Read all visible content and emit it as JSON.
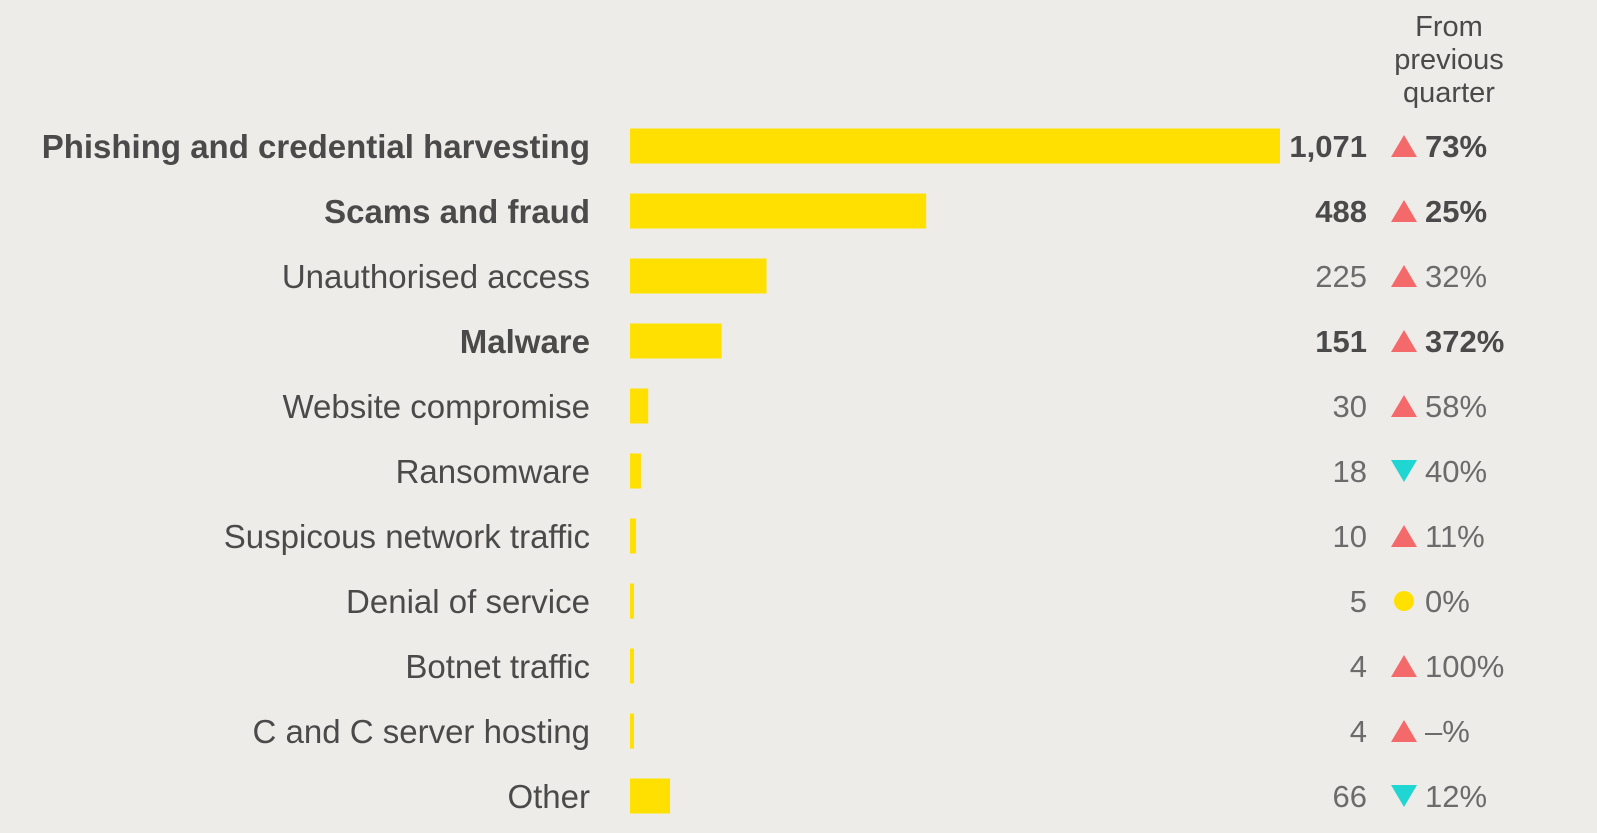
{
  "chart_data": {
    "type": "bar",
    "orientation": "horizontal",
    "title": "",
    "xlabel": "",
    "ylabel": "",
    "change_header": [
      "From",
      "previous",
      "quarter"
    ],
    "categories": [
      "Phishing and credential harvesting",
      "Scams and fraud",
      "Unauthorised access",
      "Malware",
      "Website compromise",
      "Ransomware",
      "Suspicous network traffic",
      "Denial of service",
      "Botnet traffic",
      "C and C server hosting",
      "Other"
    ],
    "values": [
      1071,
      488,
      225,
      151,
      30,
      18,
      10,
      5,
      4,
      4,
      66
    ],
    "value_labels": [
      "1,071",
      "488",
      "225",
      "151",
      "30",
      "18",
      "10",
      "5",
      "4",
      "4",
      "66"
    ],
    "changes": [
      "73%",
      "25%",
      "32%",
      "372%",
      "58%",
      "40%",
      "11%",
      "0%",
      "100%",
      "–%",
      "12%"
    ],
    "change_direction": [
      "up",
      "up",
      "up",
      "up",
      "up",
      "down",
      "up",
      "flat",
      "up",
      "up",
      "down"
    ],
    "bold": [
      true,
      true,
      false,
      true,
      false,
      false,
      false,
      false,
      false,
      false,
      false
    ],
    "xlim": [
      0,
      1071
    ],
    "grid": false,
    "legend": "none",
    "colors": {
      "bar": "#ffe000",
      "up": "#f46a6a",
      "down": "#1fd6d2",
      "flat": "#ffe000",
      "background": "#eeece8"
    }
  }
}
